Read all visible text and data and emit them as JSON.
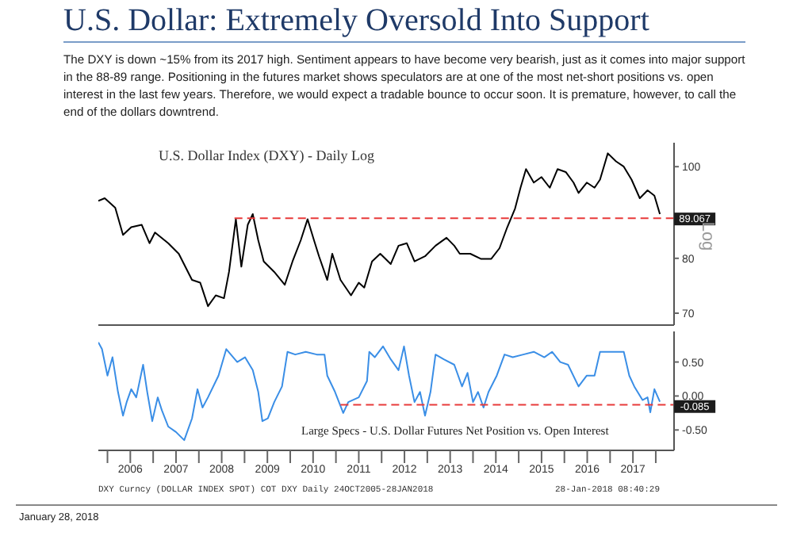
{
  "chart_data": [
    {
      "type": "line",
      "title": "U.S. Dollar: Extremely Oversold Into Support",
      "subtitle": "The DXY is down ~15% from its 2017 high. Sentiment appears to have become very bearish, just as it comes into major support in the 88-89 range. Positioning in the futures market shows speculators are at one of the most net-short positions vs. open interest in the last few years. Therefore, we would expect a tradable bounce to occur soon. It is premature, however, to call the end of the dollars downtrend.",
      "annotations": [
        "U.S. Dollar Index (DXY) - Daily Log",
        "Log",
        {
          "text": "89.067",
          "x": 2018.09,
          "y": 89.067
        }
      ],
      "log": "y",
      "marker": "none",
      "line_style": "solid",
      "tick_labels": "y",
      "xlim": [
        2005.8,
        2018.4
      ],
      "ylim": [
        68,
        106
      ],
      "yticks": [
        70,
        80,
        100
      ],
      "series": [
        {
          "color": "#000000",
          "x": [
            2005.8,
            2005.94,
            2006.17,
            2006.34,
            2006.52,
            2006.75,
            2006.92,
            2007.04,
            2007.33,
            2007.56,
            2007.85,
            2008.03,
            2008.2,
            2008.37,
            2008.55,
            2008.66,
            2008.81,
            2008.93,
            2009.07,
            2009.18,
            2009.3,
            2009.42,
            2009.65,
            2009.88,
            2010.05,
            2010.23,
            2010.38,
            2010.52,
            2010.63,
            2010.81,
            2010.92,
            2011.1,
            2011.33,
            2011.5,
            2011.62,
            2011.79,
            2011.97,
            2012.2,
            2012.37,
            2012.55,
            2012.72,
            2012.95,
            2013.18,
            2013.42,
            2013.59,
            2013.71,
            2013.94,
            2014.17,
            2014.4,
            2014.58,
            2014.75,
            2014.92,
            2015.04,
            2015.16,
            2015.33,
            2015.5,
            2015.68,
            2015.85,
            2016.03,
            2016.2,
            2016.31,
            2016.49,
            2016.66,
            2016.78,
            2016.95,
            2017.13,
            2017.3,
            2017.47,
            2017.65,
            2017.82,
            2017.97,
            2018.09
          ],
          "values": [
            92.0,
            92.6,
            90.5,
            84.7,
            86.3,
            86.8,
            83.0,
            85.2,
            83.0,
            80.9,
            75.9,
            75.4,
            71.2,
            73.1,
            72.6,
            77.4,
            88.0,
            78.4,
            86.8,
            89.1,
            83.6,
            79.4,
            77.4,
            75.0,
            79.4,
            83.6,
            88.0,
            83.6,
            80.4,
            75.9,
            80.9,
            75.9,
            73.1,
            75.4,
            74.5,
            79.4,
            80.9,
            78.9,
            82.5,
            83.0,
            79.4,
            80.4,
            82.5,
            84.1,
            82.5,
            80.9,
            80.9,
            79.9,
            79.9,
            82.0,
            86.3,
            90.3,
            95.0,
            99.4,
            96.2,
            97.5,
            95.0,
            99.4,
            98.7,
            96.2,
            93.8,
            96.2,
            95.0,
            96.9,
            103.3,
            101.3,
            100.0,
            96.9,
            92.6,
            94.4,
            93.2,
            89.1
          ]
        },
        {
          "color": "#e83a3a",
          "line_style": "dashed",
          "x": [
            2008.78,
            2018.4
          ],
          "values": [
            88.2,
            88.2
          ]
        }
      ]
    },
    {
      "type": "line",
      "annotations": [
        "Large Specs - U.S. Dollar Futures Net Position vs. Open Interest",
        {
          "text": "-0.085",
          "x": 2018.09,
          "y": -0.085
        },
        "DXY Curncy (DOLLAR INDEX SPOT) COT DXY Daily 24OCT2005-28JAN2018",
        "28-Jan-2018 08:40:29",
        "January 28, 2018"
      ],
      "marker": "none",
      "line_style": "solid",
      "xlim": [
        2005.8,
        2018.4
      ],
      "ylim": [
        -0.8,
        0.95
      ],
      "xticks": [
        {
          "value": 2006,
          "label": null
        },
        {
          "value": 2006.5,
          "label": "2006"
        },
        {
          "value": 2007,
          "label": null
        },
        {
          "value": 2007.5,
          "label": "2007"
        },
        {
          "value": 2008,
          "label": null
        },
        {
          "value": 2008.5,
          "label": "2008"
        },
        {
          "value": 2009,
          "label": null
        },
        {
          "value": 2009.5,
          "label": "2009"
        },
        {
          "value": 2010,
          "label": null
        },
        {
          "value": 2010.5,
          "label": "2010"
        },
        {
          "value": 2011,
          "label": null
        },
        {
          "value": 2011.5,
          "label": "2011"
        },
        {
          "value": 2012,
          "label": null
        },
        {
          "value": 2012.5,
          "label": "2012"
        },
        {
          "value": 2013,
          "label": null
        },
        {
          "value": 2013.5,
          "label": "2013"
        },
        {
          "value": 2014,
          "label": null
        },
        {
          "value": 2014.5,
          "label": "2014"
        },
        {
          "value": 2015,
          "label": null
        },
        {
          "value": 2015.5,
          "label": "2015"
        },
        {
          "value": 2016,
          "label": null
        },
        {
          "value": 2016.5,
          "label": "2016"
        },
        {
          "value": 2017,
          "label": null
        },
        {
          "value": 2017.5,
          "label": "2017"
        },
        {
          "value": 2018,
          "label": null
        }
      ],
      "yticks": [
        {
          "value": 0.5,
          "label": "0.50"
        },
        {
          "value": 0,
          "label": "0.00"
        },
        {
          "value": -0.5,
          "label": "-0.50"
        }
      ],
      "series": [
        {
          "color": "#3a8ee6",
          "x": [
            2005.8,
            2005.88,
            2006.0,
            2006.11,
            2006.23,
            2006.34,
            2006.42,
            2006.52,
            2006.63,
            2006.78,
            2006.87,
            2006.98,
            2007.1,
            2007.19,
            2007.33,
            2007.5,
            2007.68,
            2007.85,
            2007.97,
            2008.08,
            2008.2,
            2008.43,
            2008.6,
            2008.84,
            2009.01,
            2009.18,
            2009.3,
            2009.39,
            2009.51,
            2009.65,
            2009.82,
            2009.94,
            2010.11,
            2010.34,
            2010.58,
            2010.75,
            2010.81,
            2010.98,
            2011.16,
            2011.27,
            2011.5,
            2011.68,
            2011.73,
            2011.85,
            2012.03,
            2012.2,
            2012.37,
            2012.49,
            2012.6,
            2012.72,
            2012.84,
            2012.95,
            2013.07,
            2013.18,
            2013.36,
            2013.59,
            2013.76,
            2013.88,
            2014.0,
            2014.11,
            2014.23,
            2014.34,
            2014.52,
            2014.69,
            2014.87,
            2015.1,
            2015.33,
            2015.56,
            2015.73,
            2015.91,
            2016.08,
            2016.31,
            2016.49,
            2016.66,
            2016.78,
            2016.95,
            2017.18,
            2017.3,
            2017.42,
            2017.53,
            2017.71,
            2017.82,
            2017.88,
            2017.97,
            2018.09
          ],
          "values": [
            0.79,
            0.69,
            0.3,
            0.57,
            0.06,
            -0.29,
            -0.09,
            0.1,
            -0.02,
            0.46,
            0.06,
            -0.37,
            -0.02,
            -0.21,
            -0.45,
            -0.53,
            -0.65,
            -0.33,
            0.1,
            -0.17,
            -0.02,
            0.3,
            0.69,
            0.5,
            0.57,
            0.38,
            0.06,
            -0.37,
            -0.33,
            -0.09,
            0.14,
            0.65,
            0.61,
            0.65,
            0.61,
            0.61,
            0.3,
            0.06,
            -0.25,
            -0.09,
            -0.02,
            0.22,
            0.65,
            0.57,
            0.73,
            0.54,
            0.38,
            0.73,
            0.3,
            -0.09,
            0.06,
            -0.29,
            0.06,
            0.61,
            0.54,
            0.46,
            0.14,
            0.34,
            -0.09,
            0.06,
            -0.17,
            0.06,
            0.3,
            0.61,
            0.57,
            0.61,
            0.65,
            0.57,
            0.65,
            0.5,
            0.46,
            0.14,
            0.3,
            0.3,
            0.65,
            0.65,
            0.65,
            0.65,
            0.3,
            0.14,
            -0.06,
            -0.02,
            -0.24,
            0.1,
            -0.085
          ]
        },
        {
          "color": "#e83a3a",
          "line_style": "dashed",
          "x": [
            2011.1,
            2018.4
          ],
          "values": [
            -0.13,
            -0.13
          ]
        }
      ]
    }
  ]
}
